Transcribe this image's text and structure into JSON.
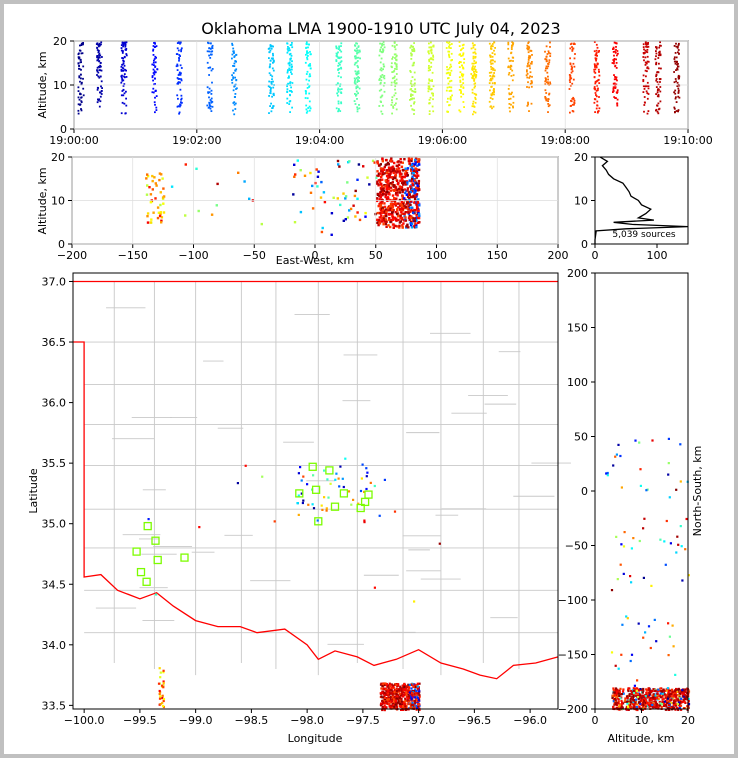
{
  "title": "Oklahoma LMA 1900-1910 UTC July 04, 2023",
  "colors": {
    "state_border": "#ff0000",
    "county_lines": "#c8c8c8",
    "station_marker": "#7cfc00",
    "histogram_line": "#000000",
    "grid": "#dddddd",
    "colormap": "jet (blue=early, red=late)"
  },
  "chart_data": [
    {
      "id": "time_altitude",
      "type": "scatter",
      "xlabel": "",
      "ylabel": "Altitude, km",
      "xlim": [
        "19:00:00",
        "19:10:00"
      ],
      "ylim": [
        0,
        20
      ],
      "xticks": [
        "19:00:00",
        "19:02:00",
        "19:04:00",
        "19:06:00",
        "19:08:00",
        "19:10:00"
      ],
      "yticks": [
        "0",
        "10",
        "20"
      ],
      "grid": true,
      "flash_columns_min": [
        0.1,
        0.4,
        0.8,
        1.3,
        1.7,
        2.2,
        2.6,
        3.2,
        3.5,
        3.8,
        4.3,
        4.6,
        5.0,
        5.2,
        5.5,
        5.8,
        6.1,
        6.3,
        6.5,
        6.8,
        7.1,
        7.4,
        7.7,
        8.1,
        8.5,
        8.8,
        9.3,
        9.5,
        9.8
      ],
      "altitude_range_km": [
        3.5,
        20
      ]
    },
    {
      "id": "ew_altitude",
      "type": "scatter",
      "xlabel": "East-West, km",
      "ylabel": "Altitude, km",
      "xlim": [
        -200,
        200
      ],
      "ylim": [
        0,
        20
      ],
      "xticks": [
        "−200",
        "−150",
        "−100",
        "−50",
        "0",
        "50",
        "100",
        "150",
        "200"
      ],
      "yticks": [
        "0",
        "10",
        "20"
      ],
      "grid": true,
      "clusters": [
        {
          "ew_km": [
            -140,
            -125
          ],
          "alt_km": [
            5,
            17
          ],
          "color": "orange"
        },
        {
          "ew_km": [
            50,
            85
          ],
          "alt_km": [
            4,
            20
          ],
          "color": "dark red"
        },
        {
          "ew_km": [
            -20,
            50
          ],
          "alt_km": [
            2,
            20
          ],
          "color": "mixed"
        }
      ]
    },
    {
      "id": "altitude_histogram",
      "type": "line",
      "xlabel": "",
      "ylabel": "",
      "xlim": [
        0,
        150
      ],
      "ylim": [
        0,
        20
      ],
      "xticks": [
        "0",
        "100"
      ],
      "yticks": [
        "0",
        "10",
        "20"
      ],
      "annotation": "5,039 sources",
      "profile": [
        {
          "alt": 0,
          "count": 0
        },
        {
          "alt": 1,
          "count": 0
        },
        {
          "alt": 2,
          "count": 1
        },
        {
          "alt": 3,
          "count": 2
        },
        {
          "alt": 3.5,
          "count": 50
        },
        {
          "alt": 4,
          "count": 150
        },
        {
          "alt": 4.5,
          "count": 60
        },
        {
          "alt": 5,
          "count": 30
        },
        {
          "alt": 5.5,
          "count": 95
        },
        {
          "alt": 6,
          "count": 70
        },
        {
          "alt": 7,
          "count": 82
        },
        {
          "alt": 8,
          "count": 90
        },
        {
          "alt": 9,
          "count": 75
        },
        {
          "alt": 10,
          "count": 70
        },
        {
          "alt": 11,
          "count": 58
        },
        {
          "alt": 12,
          "count": 55
        },
        {
          "alt": 13,
          "count": 50
        },
        {
          "alt": 14,
          "count": 45
        },
        {
          "alt": 15,
          "count": 30
        },
        {
          "alt": 16,
          "count": 22
        },
        {
          "alt": 17,
          "count": 18
        },
        {
          "alt": 18,
          "count": 12
        },
        {
          "alt": 19,
          "count": 20
        },
        {
          "alt": 20,
          "count": 8
        }
      ]
    },
    {
      "id": "plan_view",
      "type": "scatter",
      "xlabel": "Longitude",
      "ylabel": "Latitude",
      "xlim": [
        -100.1,
        -95.75
      ],
      "ylim": [
        33.47,
        37.07
      ],
      "xticks": [
        "−100.0",
        "−99.5",
        "−99.0",
        "−98.5",
        "−98.0",
        "−97.5",
        "−97.0",
        "−96.5",
        "−96.0"
      ],
      "yticks": [
        "33.5",
        "34.0",
        "34.5",
        "35.0",
        "35.5",
        "36.0",
        "36.5",
        "37.0"
      ],
      "stations": [
        [
          -97.95,
          35.47
        ],
        [
          -97.8,
          35.44
        ],
        [
          -97.92,
          35.28
        ],
        [
          -97.67,
          35.25
        ],
        [
          -97.45,
          35.24
        ],
        [
          -98.07,
          35.25
        ],
        [
          -97.75,
          35.14
        ],
        [
          -97.52,
          35.13
        ],
        [
          -97.48,
          35.18
        ],
        [
          -97.9,
          35.02
        ],
        [
          -99.43,
          34.98
        ],
        [
          -99.36,
          34.86
        ],
        [
          -99.53,
          34.77
        ],
        [
          -99.34,
          34.7
        ],
        [
          -99.1,
          34.72
        ],
        [
          -99.49,
          34.6
        ],
        [
          -99.44,
          34.52
        ]
      ]
    },
    {
      "id": "altitude_ns",
      "type": "scatter",
      "xlabel": "Altitude, km",
      "ylabel": "North-South, km",
      "xlim": [
        0,
        20
      ],
      "ylim": [
        -200,
        200
      ],
      "xticks": [
        "0",
        "10",
        "20"
      ],
      "yticks": [
        "−200",
        "−150",
        "−100",
        "−50",
        "0",
        "50",
        "100",
        "150",
        "200"
      ]
    }
  ]
}
